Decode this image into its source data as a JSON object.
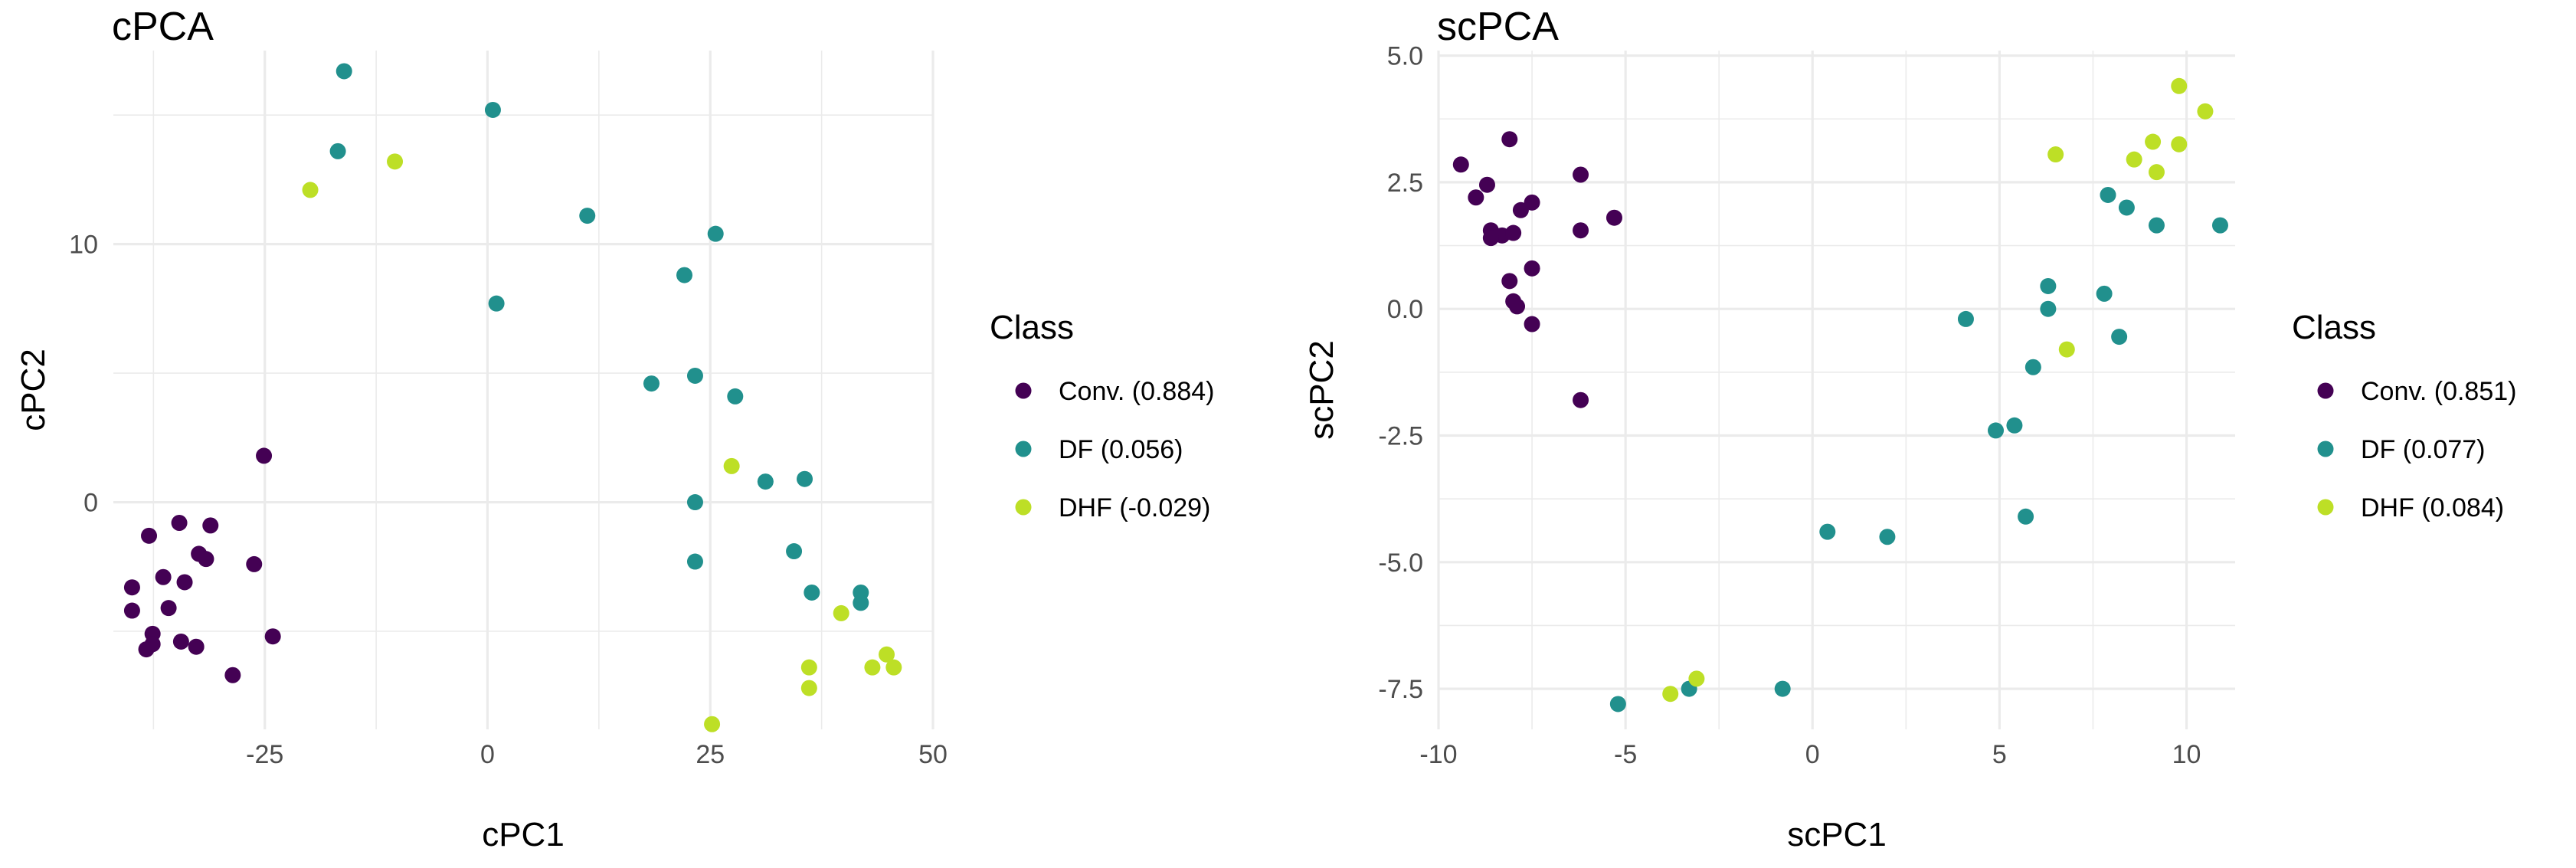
{
  "chart_data": [
    {
      "type": "scatter",
      "title": "cPCA",
      "xlabel": "cPC1",
      "ylabel": "cPC2",
      "xlim": [
        -42,
        50
      ],
      "ylim": [
        -8.8,
        17.5
      ],
      "xticks": [
        -25,
        0,
        25,
        50
      ],
      "xtick_labels": [
        "-25",
        "0",
        "25",
        "50"
      ],
      "xminor": [
        -37.5,
        -12.5,
        12.5,
        37.5
      ],
      "yticks": [
        0,
        10
      ],
      "ytick_labels": [
        "0",
        "10"
      ],
      "yminor": [
        -5,
        5,
        15
      ],
      "grid": true,
      "legend": {
        "title": "Class",
        "position": "right"
      },
      "series": [
        {
          "name": "Conv. (0.884)",
          "color": "#440154",
          "points": [
            [
              -25.1,
              1.8
            ],
            [
              -38.0,
              -1.3
            ],
            [
              -34.6,
              -0.8
            ],
            [
              -31.1,
              -0.9
            ],
            [
              -32.4,
              -2.0
            ],
            [
              -31.6,
              -2.2
            ],
            [
              -26.2,
              -2.4
            ],
            [
              -36.4,
              -2.9
            ],
            [
              -34.0,
              -3.1
            ],
            [
              -39.9,
              -3.3
            ],
            [
              -35.8,
              -4.1
            ],
            [
              -39.9,
              -4.2
            ],
            [
              -37.6,
              -5.1
            ],
            [
              -24.1,
              -5.2
            ],
            [
              -34.4,
              -5.4
            ],
            [
              -37.6,
              -5.5
            ],
            [
              -32.7,
              -5.6
            ],
            [
              -38.3,
              -5.7
            ],
            [
              -28.6,
              -6.7
            ]
          ]
        },
        {
          "name": "DF (0.056)",
          "color": "#21908d",
          "points": [
            [
              -16.1,
              16.7
            ],
            [
              -16.8,
              13.6
            ],
            [
              0.6,
              15.2
            ],
            [
              11.2,
              11.1
            ],
            [
              25.6,
              10.4
            ],
            [
              22.1,
              8.8
            ],
            [
              1.0,
              7.7
            ],
            [
              23.3,
              4.9
            ],
            [
              18.4,
              4.6
            ],
            [
              27.8,
              4.1
            ],
            [
              35.6,
              0.9
            ],
            [
              23.3,
              0.0
            ],
            [
              31.2,
              0.8
            ],
            [
              34.4,
              -1.9
            ],
            [
              23.3,
              -2.3
            ],
            [
              36.4,
              -3.5
            ],
            [
              41.9,
              -3.5
            ],
            [
              41.9,
              -3.9
            ]
          ]
        },
        {
          "name": "DHF (-0.029)",
          "color": "#bddf26",
          "points": [
            [
              -19.9,
              12.1
            ],
            [
              -10.4,
              13.2
            ],
            [
              27.4,
              1.4
            ],
            [
              39.7,
              -4.3
            ],
            [
              44.8,
              -5.9
            ],
            [
              36.1,
              -6.4
            ],
            [
              43.2,
              -6.4
            ],
            [
              45.6,
              -6.4
            ],
            [
              36.1,
              -7.2
            ],
            [
              25.2,
              -8.6
            ]
          ]
        }
      ]
    },
    {
      "type": "scatter",
      "title": "scPCA",
      "xlabel": "scPC1",
      "ylabel": "scPC2",
      "xlim": [
        -10.0,
        11.3
      ],
      "ylim": [
        -8.3,
        5.1
      ],
      "xticks": [
        -10,
        -5,
        0,
        5,
        10
      ],
      "xtick_labels": [
        "-10",
        "-5",
        "0",
        "5",
        "10"
      ],
      "xminor": [
        -7.5,
        -2.5,
        2.5,
        7.5
      ],
      "yticks": [
        -7.5,
        -5.0,
        -2.5,
        0.0,
        2.5,
        5.0
      ],
      "ytick_labels": [
        "-7.5",
        "-5.0",
        "-2.5",
        "0.0",
        "2.5",
        "5.0"
      ],
      "yminor": [
        -6.25,
        -3.75,
        -1.25,
        1.25,
        3.75
      ],
      "grid": true,
      "legend": {
        "title": "Class",
        "position": "right"
      },
      "series": [
        {
          "name": "Conv. (0.851)",
          "color": "#440154",
          "points": [
            [
              -9.4,
              2.85
            ],
            [
              -8.1,
              3.35
            ],
            [
              -8.7,
              2.45
            ],
            [
              -9.0,
              2.2
            ],
            [
              -7.5,
              2.1
            ],
            [
              -6.2,
              2.65
            ],
            [
              -7.8,
              1.95
            ],
            [
              -8.6,
              1.55
            ],
            [
              -8.3,
              1.45
            ],
            [
              -8.0,
              1.5
            ],
            [
              -8.6,
              1.4
            ],
            [
              -6.2,
              1.55
            ],
            [
              -5.3,
              1.8
            ],
            [
              -7.5,
              0.8
            ],
            [
              -8.1,
              0.55
            ],
            [
              -8.0,
              0.15
            ],
            [
              -7.9,
              0.05
            ],
            [
              -7.5,
              -0.3
            ],
            [
              -6.2,
              -1.8
            ]
          ]
        },
        {
          "name": "DF (0.077)",
          "color": "#21908d",
          "points": [
            [
              7.9,
              2.25
            ],
            [
              8.4,
              2.0
            ],
            [
              9.2,
              1.65
            ],
            [
              10.9,
              1.65
            ],
            [
              6.3,
              0.45
            ],
            [
              7.8,
              0.3
            ],
            [
              6.3,
              0.0
            ],
            [
              4.1,
              -0.2
            ],
            [
              8.2,
              -0.55
            ],
            [
              5.9,
              -1.15
            ],
            [
              5.4,
              -2.3
            ],
            [
              4.9,
              -2.4
            ],
            [
              5.7,
              -4.1
            ],
            [
              0.4,
              -4.4
            ],
            [
              2.0,
              -4.5
            ],
            [
              -3.3,
              -7.5
            ],
            [
              -0.8,
              -7.5
            ],
            [
              -5.2,
              -7.8
            ]
          ]
        },
        {
          "name": "DHF (0.084)",
          "color": "#bddf26",
          "points": [
            [
              9.8,
              4.4
            ],
            [
              10.5,
              3.9
            ],
            [
              6.5,
              3.05
            ],
            [
              9.1,
              3.3
            ],
            [
              9.8,
              3.25
            ],
            [
              8.6,
              2.95
            ],
            [
              9.2,
              2.7
            ],
            [
              6.8,
              -0.8
            ],
            [
              -3.1,
              -7.3
            ],
            [
              -3.8,
              -7.6
            ]
          ]
        }
      ]
    }
  ]
}
